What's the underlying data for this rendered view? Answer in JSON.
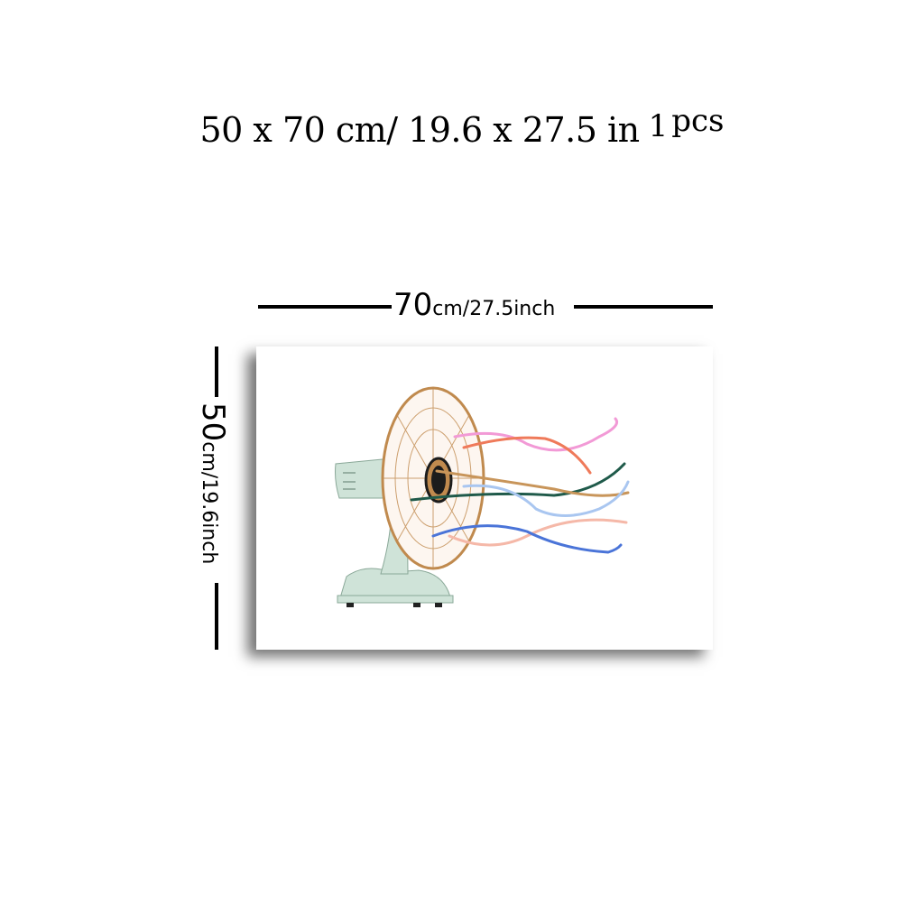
{
  "headline": {
    "size_text": "50 x 70 cm/ 19.6 x 27.5 in",
    "count": "1",
    "unit": "pcs"
  },
  "dimension_top": {
    "value": "70",
    "unit_text": "cm/27.5inch"
  },
  "dimension_left": {
    "value": "50",
    "unit_text": "cm/19.6inch"
  },
  "artwork": {
    "subject": "desk-fan-illustration",
    "colors": {
      "fan_body": "#cfe3d8",
      "fan_cage": "#c08a4e",
      "hub": "#1c1c1c",
      "pink": "#f29ad6",
      "coral": "#ef7a5a",
      "teal": "#1f5a4a",
      "tan": "#c8955a",
      "light_blue": "#a9c6f0",
      "peach": "#f5b8a8",
      "blue": "#4a74d8"
    }
  }
}
